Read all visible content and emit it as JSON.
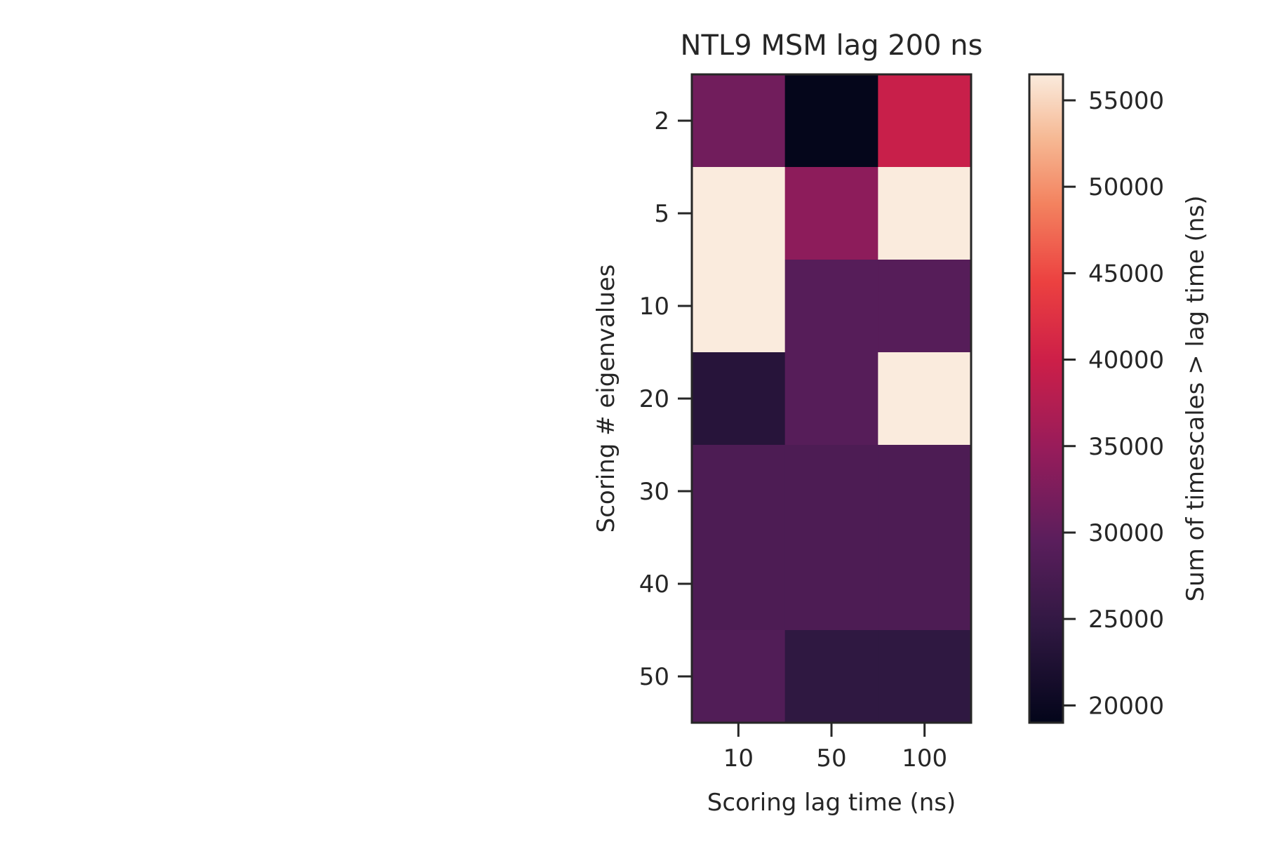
{
  "chart_data": {
    "type": "heatmap",
    "title": "NTL9 MSM lag 200 ns",
    "xlabel": "Scoring lag time (ns)",
    "ylabel": "Scoring # eigenvalues",
    "x_categories": [
      "10",
      "50",
      "100"
    ],
    "y_categories": [
      "2",
      "5",
      "10",
      "20",
      "30",
      "40",
      "50"
    ],
    "values": [
      [
        31500,
        19200,
        39500
      ],
      [
        56500,
        34000,
        56500
      ],
      [
        56500,
        29000,
        29000
      ],
      [
        23500,
        29000,
        56500
      ],
      [
        28000,
        28000,
        28000
      ],
      [
        28000,
        28000,
        28000
      ],
      [
        28500,
        24500,
        24500
      ]
    ],
    "colorbar": {
      "label": "Sum of timescales > lag time (ns)",
      "min": 19000,
      "max": 56500,
      "ticks": [
        "20000",
        "25000",
        "30000",
        "35000",
        "40000",
        "45000",
        "50000",
        "55000"
      ]
    },
    "colormap": "rocket",
    "grid": false,
    "legend": "none"
  }
}
